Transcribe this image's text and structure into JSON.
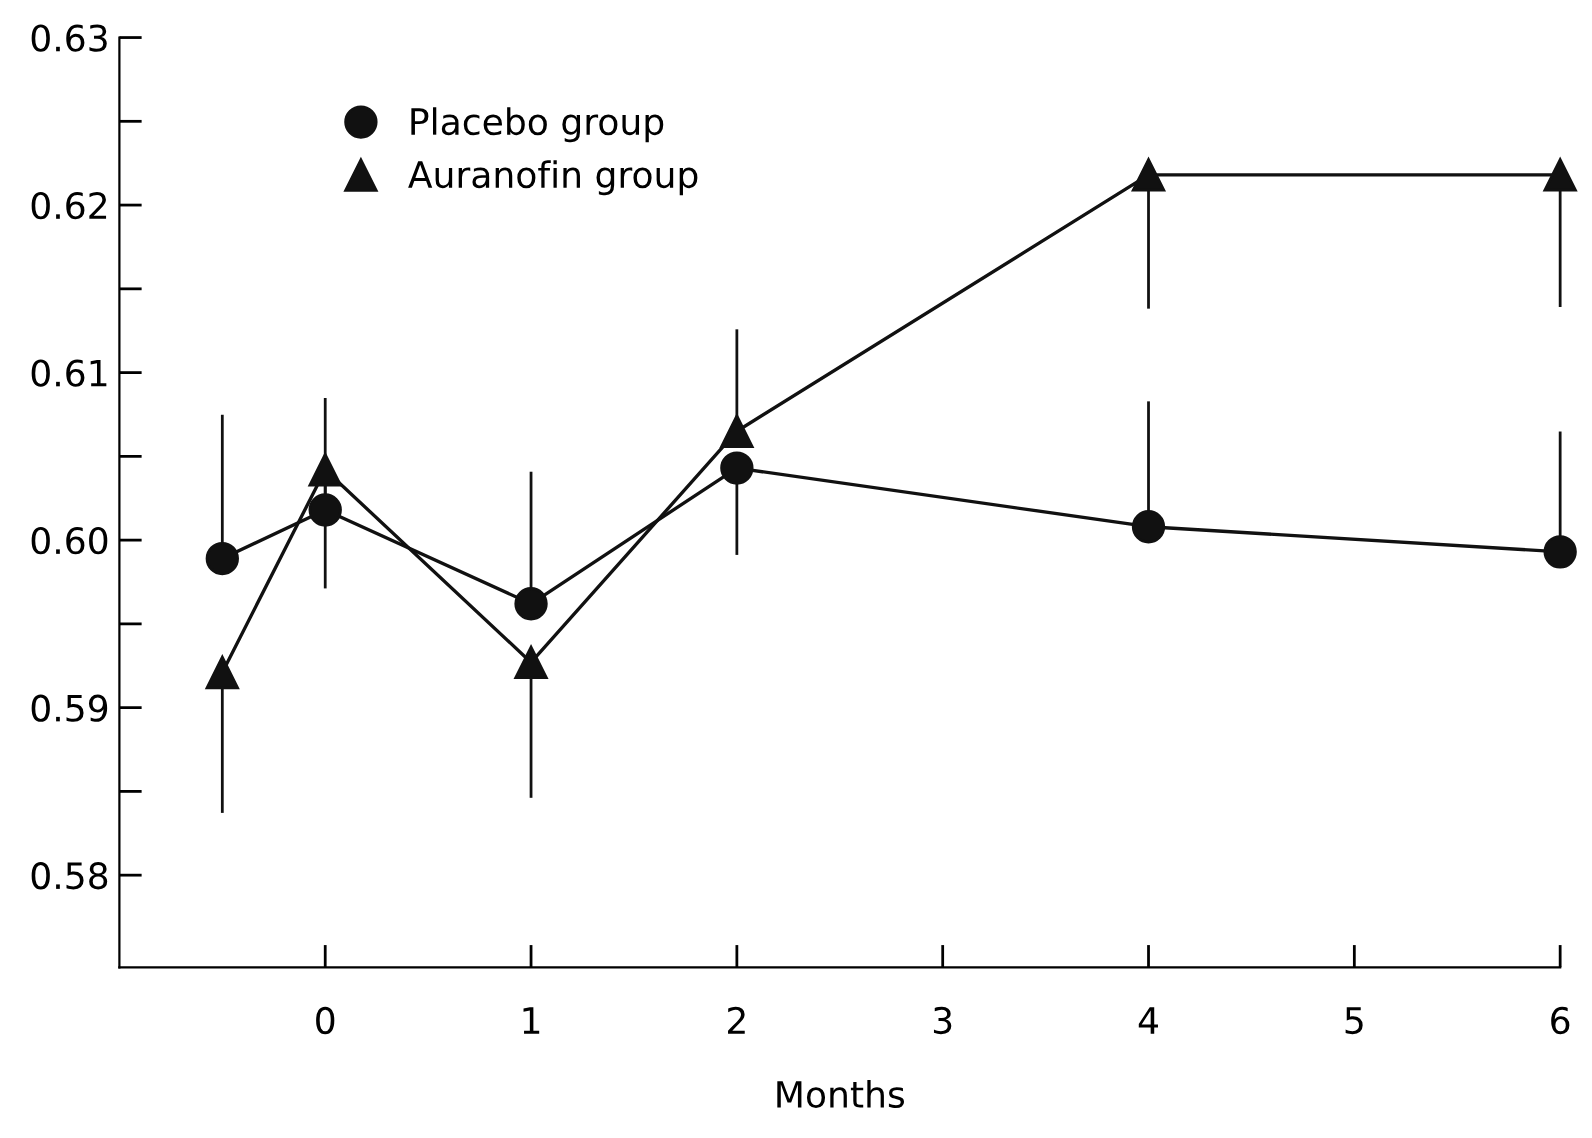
{
  "chart_data": {
    "type": "line",
    "xlabel": "Months",
    "x": [
      -0.5,
      0,
      1,
      2,
      4,
      6
    ],
    "series": [
      {
        "name": "Placebo group",
        "color": "#111111",
        "marker": "circle",
        "values": [
          0.5989,
          0.6018,
          0.5962,
          0.6043,
          0.6008,
          0.5993
        ],
        "errors": [
          [
            0.5989,
            0.6074
          ],
          [
            0.6018,
            0.6084
          ],
          [
            0.5962,
            0.604
          ],
          [
            0.5992,
            0.6043
          ],
          [
            0.6008,
            0.6082
          ],
          [
            0.5993,
            0.6064
          ]
        ]
      },
      {
        "name": "Auranofin group",
        "color": "#111111",
        "marker": "triangle",
        "values": [
          0.5921,
          0.6042,
          0.5927,
          0.6065,
          0.6218,
          0.6218
        ],
        "errors": [
          [
            0.5838,
            0.5921
          ],
          [
            0.5972,
            0.6042
          ],
          [
            0.5847,
            0.5927
          ],
          [
            0.6065,
            0.6125
          ],
          [
            0.6139,
            0.6218
          ],
          [
            0.614,
            0.6218
          ]
        ]
      }
    ],
    "xlim": [
      -1,
      6
    ],
    "xticks": [
      0,
      1,
      2,
      3,
      4,
      5,
      6
    ],
    "ylim": [
      0.5745,
      0.63
    ],
    "yticks": [
      {
        "value": 0.58,
        "label": "0.58"
      },
      {
        "value": 0.585,
        "label": null
      },
      {
        "value": 0.59,
        "label": "0.59"
      },
      {
        "value": 0.595,
        "label": null
      },
      {
        "value": 0.6,
        "label": "0.60"
      },
      {
        "value": 0.605,
        "label": null
      },
      {
        "value": 0.61,
        "label": "0.61"
      },
      {
        "value": 0.615,
        "label": null
      },
      {
        "value": 0.62,
        "label": "0.62"
      },
      {
        "value": 0.625,
        "label": null
      },
      {
        "value": 0.63,
        "label": "0.63"
      }
    ],
    "grid": false,
    "legend": "top left",
    "line_style": "solid"
  }
}
